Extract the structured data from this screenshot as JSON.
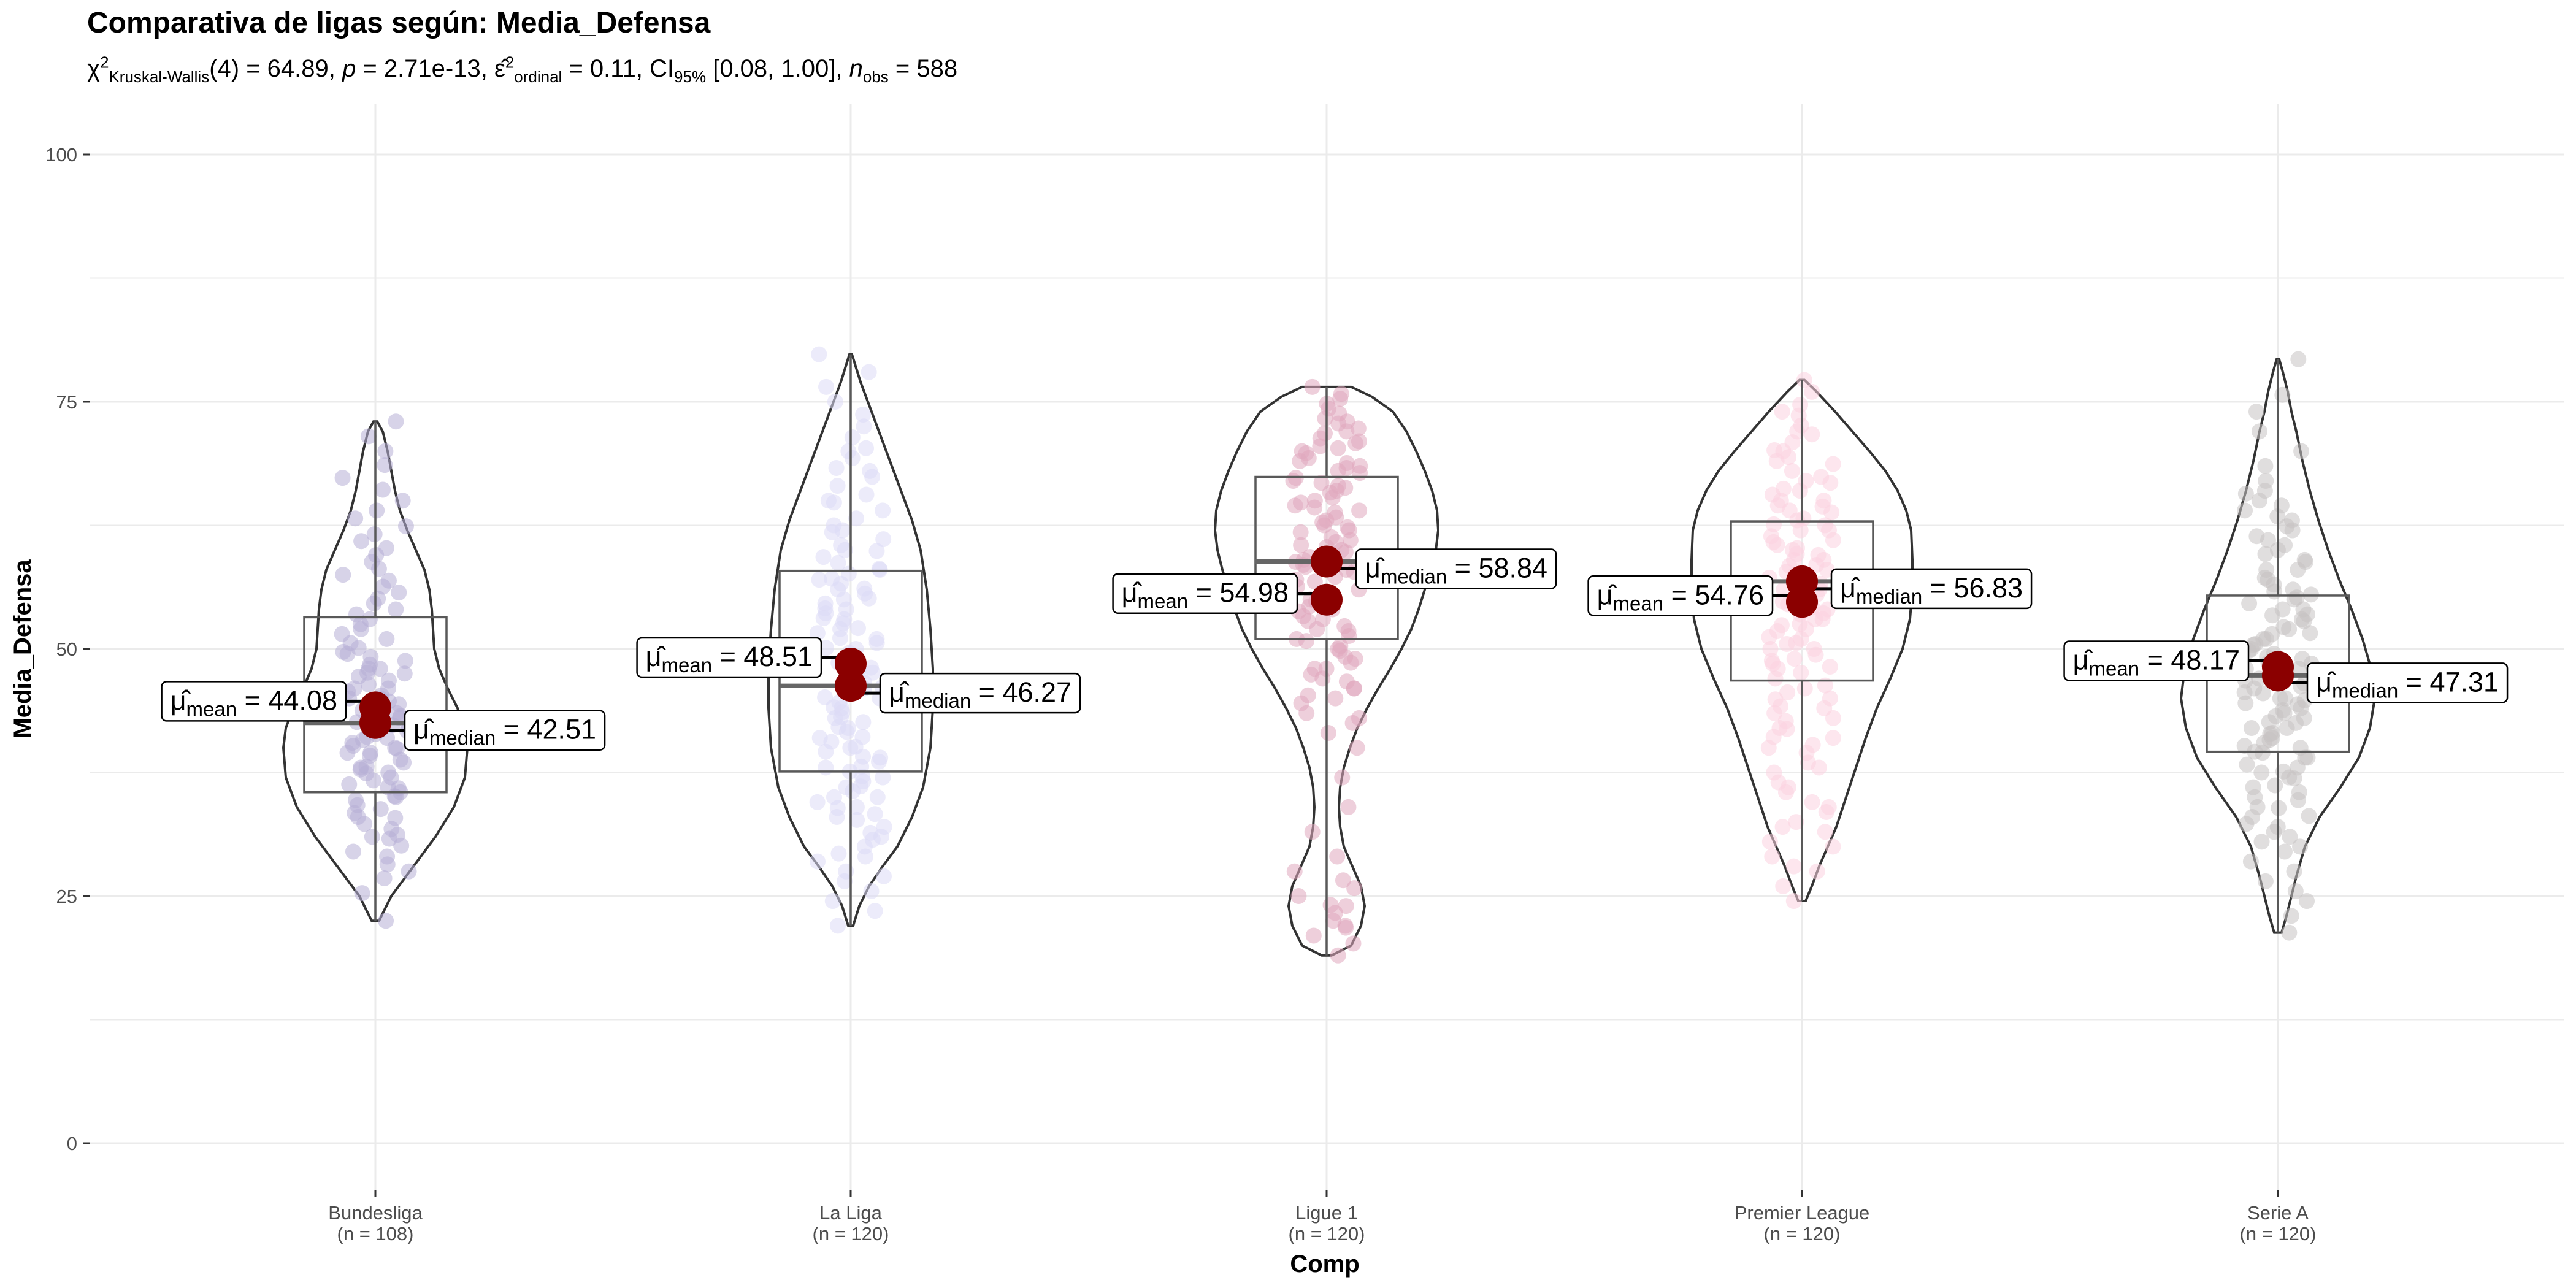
{
  "title": "Comparativa de ligas según: Media_Defensa",
  "subtitle": {
    "chi_symbol": "χ",
    "chi_sup": "2",
    "chi_sub": "Kruskal-Wallis",
    "df_part": "(4) = 64.89, ",
    "p_symbol": "p",
    "p_part": " = 2.71e-13, ",
    "eps_symbol": "ε̂",
    "eps_sup": "2",
    "eps_sub": "ordinal",
    "eps_part": " = 0.11, CI",
    "ci_sub": "95%",
    "ci_part": " [0.08, 1.00], ",
    "n_symbol": "n",
    "n_sub": "obs",
    "n_part": " = 588"
  },
  "colors": {
    "mean_point": "#8b0000",
    "grid": "#ebebeb",
    "Bundesliga": "#b7aed6",
    "La Liga": "#dcdaf5",
    "Ligue 1": "#e0a8bd",
    "Premier League": "#fcd2e0",
    "Serie A": "#c6c2c2"
  },
  "chart_data": {
    "type": "violin",
    "xlabel": "Comp",
    "ylabel": "Media_Defensa",
    "ylim": [
      0,
      100
    ],
    "yticks": [
      0,
      25,
      50,
      75,
      100
    ],
    "grid": true,
    "groups": [
      {
        "name": "Bundesliga",
        "n_label": "(n = 108)",
        "mean": 44.08,
        "median": 42.51,
        "q1": 35.5,
        "q3": 53.2,
        "min": 22.5,
        "max": 73.0,
        "mean_label": "44.08",
        "median_label": "42.51",
        "violin": [
          [
            22.5,
            6
          ],
          [
            25,
            26
          ],
          [
            28,
            62
          ],
          [
            31,
            98
          ],
          [
            34,
            128
          ],
          [
            37,
            146
          ],
          [
            40,
            150
          ],
          [
            42,
            146
          ],
          [
            44,
            134
          ],
          [
            46,
            118
          ],
          [
            48,
            104
          ],
          [
            50,
            96
          ],
          [
            52,
            94
          ],
          [
            54,
            92
          ],
          [
            56,
            88
          ],
          [
            58,
            80
          ],
          [
            60,
            66
          ],
          [
            62,
            52
          ],
          [
            64,
            40
          ],
          [
            66,
            32
          ],
          [
            68,
            26
          ],
          [
            70,
            20
          ],
          [
            72,
            12
          ],
          [
            73,
            3
          ]
        ],
        "points": [
          22.5,
          25.3,
          26.8,
          27.5,
          28.2,
          29.0,
          29.5,
          30.1,
          30.8,
          31.2,
          31.8,
          32.3,
          32.9,
          33.4,
          33.8,
          34.2,
          34.7,
          35.1,
          35.5,
          35.9,
          36.3,
          36.7,
          37.0,
          37.4,
          37.8,
          38.1,
          38.5,
          38.8,
          39.2,
          39.5,
          39.9,
          40.2,
          40.5,
          40.8,
          41.1,
          41.4,
          41.7,
          42.0,
          42.3,
          42.6,
          42.9,
          43.2,
          43.5,
          43.8,
          44.1,
          44.4,
          44.7,
          45.0,
          45.3,
          45.7,
          46.0,
          46.4,
          46.8,
          47.2,
          47.6,
          48.0,
          48.4,
          48.8,
          49.2,
          49.7,
          50.1,
          50.6,
          51.0,
          51.5,
          52.0,
          52.5,
          53.0,
          53.5,
          54.0,
          54.6,
          55.1,
          55.7,
          56.3,
          56.9,
          57.5,
          58.1,
          58.8,
          59.5,
          60.2,
          60.9,
          61.6,
          62.4,
          63.2,
          64.0,
          65.0,
          66.1,
          67.3,
          68.6,
          70.0,
          71.5,
          73.0,
          36.0,
          38.0,
          40.0,
          42.0,
          44.0,
          46.0,
          48.0,
          41.0,
          43.0,
          45.0,
          37.5,
          39.5,
          47.5,
          49.5,
          33.0,
          31.0,
          35.0
        ]
      },
      {
        "name": "La Liga",
        "n_label": "(n = 120)",
        "mean": 48.51,
        "median": 46.27,
        "q1": 37.6,
        "q3": 57.9,
        "min": 22.0,
        "max": 79.8,
        "mean_label": "48.51",
        "median_label": "46.27",
        "violin": [
          [
            22,
            4
          ],
          [
            24,
            14
          ],
          [
            26,
            30
          ],
          [
            28,
            52
          ],
          [
            30,
            76
          ],
          [
            33,
            100
          ],
          [
            36,
            118
          ],
          [
            40,
            130
          ],
          [
            44,
            134
          ],
          [
            48,
            134
          ],
          [
            52,
            130
          ],
          [
            56,
            124
          ],
          [
            60,
            114
          ],
          [
            63,
            100
          ],
          [
            66,
            82
          ],
          [
            69,
            64
          ],
          [
            72,
            46
          ],
          [
            75,
            28
          ],
          [
            77,
            16
          ],
          [
            79,
            6
          ],
          [
            79.8,
            2
          ]
        ],
        "points": [
          22.0,
          23.5,
          24.5,
          25.5,
          26.5,
          27.5,
          28.5,
          29.3,
          30.0,
          30.7,
          31.4,
          32.0,
          32.7,
          33.3,
          33.9,
          34.5,
          35.0,
          35.6,
          36.1,
          36.6,
          37.1,
          37.6,
          38.1,
          38.6,
          39.1,
          39.6,
          40.1,
          40.6,
          41.1,
          41.6,
          42.1,
          42.6,
          43.1,
          43.6,
          44.1,
          44.6,
          45.1,
          45.6,
          46.1,
          46.6,
          47.1,
          47.6,
          48.1,
          48.6,
          49.1,
          49.6,
          50.1,
          50.6,
          51.1,
          51.6,
          52.1,
          52.6,
          53.1,
          53.6,
          54.1,
          54.6,
          55.1,
          55.6,
          56.1,
          56.6,
          57.1,
          57.6,
          58.1,
          58.7,
          59.3,
          59.9,
          60.5,
          61.1,
          61.8,
          62.5,
          63.2,
          64.0,
          64.8,
          65.6,
          66.5,
          67.4,
          68.3,
          69.3,
          70.3,
          71.4,
          72.5,
          73.7,
          75.0,
          76.5,
          78.0,
          79.8,
          38.0,
          40.0,
          42.0,
          44.0,
          46.0,
          48.0,
          50.0,
          52.0,
          54.0,
          36.0,
          34.0,
          56.0,
          58.0,
          45.0,
          47.0,
          49.0,
          51.0,
          43.0,
          41.0,
          53.0,
          55.0,
          39.0,
          37.0,
          57.0,
          60.0,
          62.0,
          65.0,
          35.0,
          33.0,
          31.0,
          29.0,
          27.0,
          68.0,
          70.0
        ]
      },
      {
        "name": "Ligue 1",
        "n_label": "(n = 120)",
        "mean": 54.98,
        "median": 58.84,
        "q1": 51.0,
        "q3": 67.4,
        "min": 19.0,
        "max": 76.5,
        "mean_label": "54.98",
        "median_label": "58.84",
        "violin": [
          [
            19,
            8
          ],
          [
            20,
            40
          ],
          [
            22,
            56
          ],
          [
            24,
            62
          ],
          [
            26,
            56
          ],
          [
            28,
            42
          ],
          [
            30,
            28
          ],
          [
            32,
            22
          ],
          [
            34,
            20
          ],
          [
            36,
            22
          ],
          [
            38,
            28
          ],
          [
            40,
            38
          ],
          [
            42,
            50
          ],
          [
            44,
            66
          ],
          [
            46,
            84
          ],
          [
            48,
            104
          ],
          [
            50,
            122
          ],
          [
            52,
            138
          ],
          [
            54,
            150
          ],
          [
            56,
            160
          ],
          [
            58,
            170
          ],
          [
            60,
            178
          ],
          [
            62,
            182
          ],
          [
            64,
            180
          ],
          [
            66,
            172
          ],
          [
            68,
            160
          ],
          [
            70,
            146
          ],
          [
            72,
            130
          ],
          [
            74,
            108
          ],
          [
            75.5,
            74
          ],
          [
            76.5,
            40
          ]
        ],
        "points": [
          19.0,
          20.2,
          21.0,
          21.8,
          22.5,
          23.3,
          24.1,
          25.0,
          25.8,
          26.6,
          27.5,
          29.0,
          31.5,
          34.0,
          37.0,
          40.0,
          41.5,
          42.5,
          43.5,
          44.5,
          45.3,
          46.0,
          46.7,
          47.4,
          48.0,
          48.6,
          49.2,
          49.8,
          50.3,
          50.8,
          51.3,
          51.8,
          52.3,
          52.8,
          53.3,
          53.8,
          54.3,
          54.8,
          55.3,
          55.8,
          56.3,
          56.8,
          57.3,
          57.8,
          58.3,
          58.8,
          59.3,
          59.8,
          60.3,
          60.8,
          61.3,
          61.8,
          62.3,
          62.8,
          63.3,
          63.8,
          64.3,
          64.8,
          65.3,
          65.8,
          66.3,
          66.8,
          67.3,
          67.8,
          68.3,
          68.8,
          69.3,
          69.8,
          70.3,
          70.8,
          71.3,
          71.8,
          72.3,
          72.8,
          73.3,
          73.8,
          74.3,
          74.8,
          75.3,
          75.8,
          76.5,
          55.0,
          57.0,
          59.0,
          61.0,
          63.0,
          65.0,
          67.0,
          69.0,
          71.0,
          73.0,
          54.0,
          56.0,
          58.0,
          60.0,
          62.0,
          64.0,
          66.0,
          68.0,
          70.0,
          72.0,
          52.0,
          50.0,
          48.0,
          46.0,
          62.5,
          64.5,
          66.5,
          60.5,
          58.5,
          68.5,
          70.5,
          53.0,
          51.0,
          49.0,
          47.0,
          45.0,
          43.0,
          24.0,
          22.0
        ]
      },
      {
        "name": "Premier League",
        "n_label": "(n = 120)",
        "mean": 54.76,
        "median": 56.83,
        "q1": 46.8,
        "q3": 62.9,
        "min": 24.5,
        "max": 77.2,
        "mean_label": "54.76",
        "median_label": "56.83",
        "violin": [
          [
            24.5,
            6
          ],
          [
            26,
            16
          ],
          [
            28,
            28
          ],
          [
            30,
            42
          ],
          [
            32,
            56
          ],
          [
            35,
            72
          ],
          [
            38,
            88
          ],
          [
            41,
            104
          ],
          [
            44,
            122
          ],
          [
            47,
            144
          ],
          [
            50,
            164
          ],
          [
            53,
            176
          ],
          [
            56,
            180
          ],
          [
            59,
            180
          ],
          [
            62,
            178
          ],
          [
            64,
            170
          ],
          [
            66,
            156
          ],
          [
            68,
            136
          ],
          [
            70,
            110
          ],
          [
            72,
            82
          ],
          [
            74,
            54
          ],
          [
            76,
            24
          ],
          [
            77.2,
            4
          ]
        ],
        "points": [
          24.5,
          26.0,
          27.5,
          29.0,
          30.5,
          31.5,
          32.5,
          33.5,
          34.5,
          35.5,
          36.5,
          37.5,
          38.5,
          39.5,
          40.3,
          41.1,
          41.9,
          42.7,
          43.5,
          44.2,
          44.9,
          45.6,
          46.3,
          47.0,
          47.6,
          48.2,
          48.8,
          49.4,
          50.0,
          50.6,
          51.2,
          51.8,
          52.4,
          53.0,
          53.6,
          54.2,
          54.8,
          55.4,
          56.0,
          56.6,
          57.2,
          57.8,
          58.4,
          59.0,
          59.6,
          60.2,
          60.8,
          61.4,
          62.0,
          62.6,
          63.2,
          63.8,
          64.4,
          65.0,
          65.6,
          66.2,
          66.8,
          67.4,
          68.0,
          68.7,
          69.4,
          70.1,
          70.9,
          71.7,
          72.6,
          73.6,
          74.7,
          76.0,
          77.2,
          50.0,
          52.0,
          54.0,
          56.0,
          58.0,
          60.0,
          62.0,
          48.0,
          46.0,
          64.0,
          66.0,
          53.0,
          55.0,
          57.0,
          59.0,
          61.0,
          51.0,
          49.0,
          63.0,
          65.0,
          67.0,
          45.0,
          43.0,
          41.0,
          69.0,
          56.5,
          58.5,
          54.5,
          52.5,
          60.5,
          62.5,
          50.5,
          48.5,
          64.5,
          44.0,
          42.0,
          40.0,
          38.0,
          36.0,
          34.0,
          32.0,
          30.0,
          28.0,
          70.0,
          72.0,
          74.0,
          57.5,
          55.5,
          53.5,
          59.5
        ]
      },
      {
        "name": "Serie A",
        "n_label": "(n = 120)",
        "mean": 48.17,
        "median": 47.31,
        "q1": 39.6,
        "q3": 55.4,
        "min": 21.3,
        "max": 79.3,
        "mean_label": "48.17",
        "median_label": "47.31",
        "violin": [
          [
            21.3,
            6
          ],
          [
            23,
            14
          ],
          [
            25,
            22
          ],
          [
            27,
            30
          ],
          [
            30,
            44
          ],
          [
            33,
            68
          ],
          [
            36,
            102
          ],
          [
            39,
            132
          ],
          [
            42,
            150
          ],
          [
            45,
            158
          ],
          [
            48,
            152
          ],
          [
            51,
            138
          ],
          [
            54,
            120
          ],
          [
            57,
            100
          ],
          [
            60,
            82
          ],
          [
            63,
            66
          ],
          [
            66,
            52
          ],
          [
            69,
            40
          ],
          [
            72,
            30
          ],
          [
            74,
            22
          ],
          [
            76,
            16
          ],
          [
            78,
            8
          ],
          [
            79.3,
            2
          ]
        ],
        "points": [
          21.3,
          23.0,
          24.5,
          25.5,
          26.5,
          27.5,
          28.5,
          29.5,
          30.5,
          31.5,
          32.3,
          33.1,
          33.9,
          34.7,
          35.5,
          36.2,
          36.9,
          37.6,
          38.3,
          39.0,
          39.6,
          40.2,
          40.8,
          41.4,
          42.0,
          42.6,
          43.2,
          43.8,
          44.4,
          45.0,
          45.6,
          46.2,
          46.8,
          47.4,
          48.0,
          48.6,
          49.2,
          49.8,
          50.4,
          51.0,
          51.6,
          52.2,
          52.8,
          53.4,
          54.0,
          54.6,
          55.2,
          55.8,
          56.5,
          57.2,
          58.0,
          58.8,
          59.6,
          60.5,
          61.4,
          62.4,
          63.4,
          64.5,
          65.7,
          67.0,
          68.5,
          70.0,
          72.0,
          74.0,
          75.7,
          79.3,
          40.0,
          42.0,
          44.0,
          46.0,
          48.0,
          50.0,
          52.0,
          38.0,
          36.0,
          54.0,
          41.0,
          43.0,
          45.0,
          47.0,
          49.0,
          51.0,
          39.0,
          37.0,
          53.0,
          55.0,
          44.5,
          46.5,
          48.5,
          42.5,
          40.5,
          50.5,
          35.0,
          34.0,
          57.0,
          59.0,
          61.0,
          63.0,
          65.0,
          45.5,
          47.5,
          43.5,
          41.5,
          49.5,
          51.5,
          39.5,
          37.5,
          53.5,
          56.0,
          58.0,
          33.0,
          31.0,
          30.0,
          60.0,
          62.0,
          64.0,
          66.0,
          32.0,
          55.5,
          44.8
        ]
      }
    ]
  }
}
